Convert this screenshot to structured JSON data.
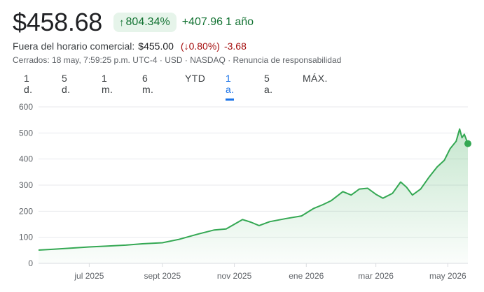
{
  "quote": {
    "price": "$458.68",
    "change_pct": "804.34%",
    "change_abs": "+407.96",
    "period": "1 año",
    "up_arrow": "↑",
    "after_hours_label": "Fuera del horario comercial:",
    "after_hours_price": "$455.00",
    "after_hours_pct_open": "(",
    "after_hours_arrow": "↓",
    "after_hours_pct": "0.80%",
    "after_hours_pct_close": ")",
    "after_hours_change": "-3.68",
    "meta": "Cerrados: 18 may, 7:59:25 p.m. UTC-4 · USD · NASDAQ · Renuncia de responsabilidad"
  },
  "tabs": [
    {
      "label": "1 d.",
      "active": false
    },
    {
      "label": "5 d.",
      "active": false
    },
    {
      "label": "1 m.",
      "active": false
    },
    {
      "label": "6 m.",
      "active": false
    },
    {
      "label": "YTD",
      "active": false
    },
    {
      "label": "1 a.",
      "active": true
    },
    {
      "label": "5 a.",
      "active": false
    },
    {
      "label": "MÁX.",
      "active": false
    }
  ],
  "colors": {
    "line": "#34a853",
    "area": "#34a853",
    "grid": "#e8eaed",
    "positive": "#137333",
    "negative": "#a50e0e",
    "active_tab": "#1a73e8"
  },
  "chart_data": {
    "type": "area",
    "ylim": [
      0,
      600
    ],
    "yticks": [
      "0",
      "100",
      "200",
      "300",
      "400",
      "500",
      "600"
    ],
    "xticks": [
      {
        "label": "jul 2025",
        "x": "2025-07-01"
      },
      {
        "label": "sept 2025",
        "x": "2025-09-01"
      },
      {
        "label": "nov 2025",
        "x": "2025-11-01"
      },
      {
        "label": "ene 2026",
        "x": "2026-01-01"
      },
      {
        "label": "mar 2026",
        "x": "2026-03-01"
      },
      {
        "label": "may 2026",
        "x": "2026-05-01"
      }
    ],
    "xlim": [
      "2025-05-19",
      "2026-05-18"
    ],
    "series": [
      {
        "points": [
          [
            "2025-05-19",
            51
          ],
          [
            "2025-06-01",
            54
          ],
          [
            "2025-06-15",
            58
          ],
          [
            "2025-07-01",
            63
          ],
          [
            "2025-07-15",
            66
          ],
          [
            "2025-08-01",
            70
          ],
          [
            "2025-08-15",
            75
          ],
          [
            "2025-09-01",
            79
          ],
          [
            "2025-09-15",
            92
          ],
          [
            "2025-10-01",
            112
          ],
          [
            "2025-10-15",
            128
          ],
          [
            "2025-10-25",
            132
          ],
          [
            "2025-11-01",
            150
          ],
          [
            "2025-11-08",
            168
          ],
          [
            "2025-11-15",
            158
          ],
          [
            "2025-11-22",
            145
          ],
          [
            "2025-12-01",
            160
          ],
          [
            "2025-12-15",
            172
          ],
          [
            "2025-12-28",
            182
          ],
          [
            "2026-01-07",
            210
          ],
          [
            "2026-01-15",
            225
          ],
          [
            "2026-01-22",
            240
          ],
          [
            "2026-02-01",
            275
          ],
          [
            "2026-02-08",
            262
          ],
          [
            "2026-02-15",
            285
          ],
          [
            "2026-02-22",
            288
          ],
          [
            "2026-03-01",
            265
          ],
          [
            "2026-03-07",
            250
          ],
          [
            "2026-03-15",
            268
          ],
          [
            "2026-03-22",
            312
          ],
          [
            "2026-03-27",
            292
          ],
          [
            "2026-04-01",
            262
          ],
          [
            "2026-04-08",
            285
          ],
          [
            "2026-04-15",
            330
          ],
          [
            "2026-04-22",
            370
          ],
          [
            "2026-04-28",
            395
          ],
          [
            "2026-05-03",
            440
          ],
          [
            "2026-05-08",
            468
          ],
          [
            "2026-05-11",
            515
          ],
          [
            "2026-05-13",
            482
          ],
          [
            "2026-05-15",
            495
          ],
          [
            "2026-05-18",
            459
          ]
        ]
      }
    ]
  }
}
